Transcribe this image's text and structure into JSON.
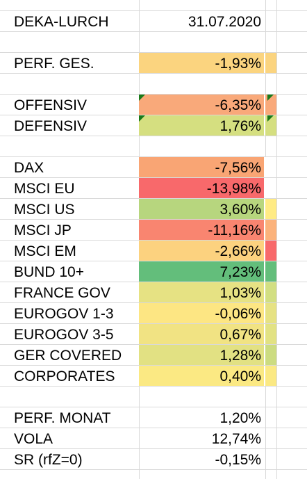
{
  "sheet": {
    "header": {
      "title": "DEKA-LURCH",
      "date": "31.07.2020"
    },
    "rows": [
      {
        "label": "PERF. GES.",
        "value": "-1,93%",
        "fill": "#fbd47f",
        "extra": "#fbd47f"
      },
      {
        "label": "OFFENSIV",
        "value": "-6,35%",
        "fill": "#f9a97a",
        "extra": "#f9a97a"
      },
      {
        "label": "DEFENSIV",
        "value": "1,76%",
        "fill": "#d5df80",
        "extra": "#d5df80"
      },
      {
        "label": "DAX",
        "value": "-7,56%",
        "fill": "#f9a574",
        "extra": "#ffffff"
      },
      {
        "label": "MSCI EU",
        "value": "-13,98%",
        "fill": "#f8696b",
        "extra": "#ffffff"
      },
      {
        "label": "MSCI US",
        "value": "3,60%",
        "fill": "#b7d67e",
        "extra": "#ffeb84"
      },
      {
        "label": "MSCI JP",
        "value": "-11,16%",
        "fill": "#f98570",
        "extra": "#fbb27b"
      },
      {
        "label": "MSCI EM",
        "value": "-2,66%",
        "fill": "#fcd27f",
        "extra": "#f8696b"
      },
      {
        "label": "BUND 10+",
        "value": "7,23%",
        "fill": "#63be7b",
        "extra": "#63be7b"
      },
      {
        "label": "FRANCE GOV",
        "value": "1,03%",
        "fill": "#e6e283",
        "extra": "#d2df82"
      },
      {
        "label": "EUROGOV 1-3",
        "value": "-0,06%",
        "fill": "#fde683",
        "extra": "#e6e283"
      },
      {
        "label": "EUROGOV 3-5",
        "value": "0,67%",
        "fill": "#f1e383",
        "extra": "#e2e283"
      },
      {
        "label": "GER COVERED",
        "value": "1,28%",
        "fill": "#e2e183",
        "extra": "#ccdc81"
      },
      {
        "label": "CORPORATES",
        "value": "0,40%",
        "fill": "#fbe983",
        "extra": "#fbe983"
      },
      {
        "label": "PERF. MONAT",
        "value": "1,20%",
        "fill": "#ffffff",
        "extra": "#ffffff"
      },
      {
        "label": "VOLA",
        "value": "12,74%",
        "fill": "#ffffff",
        "extra": "#ffffff"
      },
      {
        "label": "SR (rfZ=0)",
        "value": "-0,15%",
        "fill": "#ffffff",
        "extra": "#ffffff"
      }
    ]
  }
}
